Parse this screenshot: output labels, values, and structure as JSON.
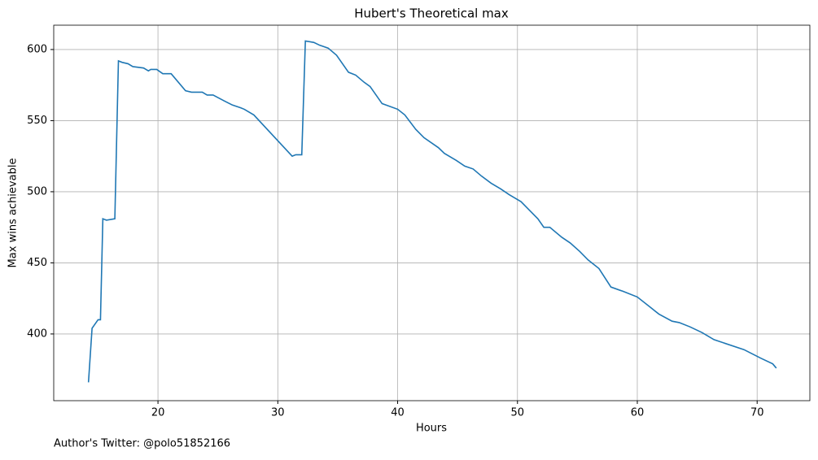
{
  "chart_data": {
    "type": "line",
    "title": "Hubert's Theoretical max",
    "xlabel": "Hours",
    "ylabel": "Max wins achievable",
    "annotation": "Author's Twitter: @polo51852166",
    "color": "#1f77b4",
    "grid": true,
    "x": [
      14.2,
      14.5,
      15.0,
      15.2,
      15.4,
      15.7,
      16.4,
      16.7,
      17.0,
      17.5,
      17.9,
      18.8,
      19.2,
      19.4,
      19.9,
      20.4,
      20.7,
      21.1,
      22.3,
      22.8,
      23.3,
      23.7,
      24.1,
      24.6,
      25.5,
      26.2,
      26.9,
      27.2,
      28.0,
      31.2,
      31.5,
      32.0,
      32.3,
      33.0,
      33.5,
      34.2,
      34.9,
      35.9,
      36.5,
      37.2,
      37.7,
      38.7,
      40.0,
      40.6,
      41.5,
      42.2,
      43.4,
      43.9,
      44.9,
      45.6,
      46.3,
      47.0,
      47.8,
      48.6,
      49.3,
      50.3,
      51.7,
      52.2,
      52.7,
      53.7,
      54.4,
      55.2,
      55.9,
      56.8,
      57.8,
      58.8,
      60.0,
      61.2,
      61.8,
      62.9,
      63.5,
      64.4,
      65.4,
      66.4,
      68.9,
      69.6,
      70.3,
      71.3,
      71.6
    ],
    "values": [
      366,
      404,
      410,
      410,
      481,
      480,
      481,
      592,
      591,
      590,
      588,
      587,
      585,
      586,
      586,
      583,
      583,
      583,
      571,
      570,
      570,
      570,
      568,
      568,
      564,
      561,
      559,
      558,
      554,
      525,
      526,
      526,
      606,
      605,
      603,
      601,
      596,
      584,
      582,
      577,
      574,
      562,
      558,
      554,
      544,
      538,
      531,
      527,
      522,
      518,
      516,
      511,
      506,
      502,
      498,
      493,
      481,
      475,
      475,
      468,
      464,
      458,
      452,
      446,
      433,
      430,
      426,
      418,
      414,
      409,
      408,
      405,
      401,
      396,
      389,
      386,
      383,
      379,
      376
    ],
    "xlim": [
      11.3,
      74.4
    ],
    "xticks": [
      20,
      30,
      40,
      50,
      60,
      70
    ],
    "ylim": [
      353.1,
      617.1
    ],
    "yticks": [
      400,
      450,
      500,
      550,
      600
    ]
  }
}
